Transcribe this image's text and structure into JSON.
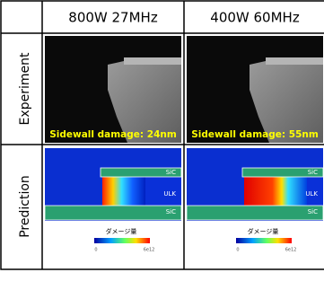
{
  "header": {
    "columns": [
      "800W 27MHz",
      "400W 60MHz"
    ]
  },
  "rows": [
    {
      "label": "Experiment",
      "cells": [
        "Sidewall damage: 24nm",
        "Sidewall damage: 55nm"
      ]
    },
    {
      "label": "Prediction",
      "cells": [
        {
          "top_layer": "SiC",
          "middle_layer": "ULK",
          "bottom_layer": "SiC",
          "colorbar_title": "ダメージ量",
          "colorbar_min": "0",
          "colorbar_max": "6e12"
        },
        {
          "top_layer": "SiC",
          "middle_layer": "ULK",
          "bottom_layer": "SiC",
          "colorbar_title": "ダメージ量",
          "colorbar_min": "0",
          "colorbar_max": "6e12"
        }
      ]
    }
  ]
}
